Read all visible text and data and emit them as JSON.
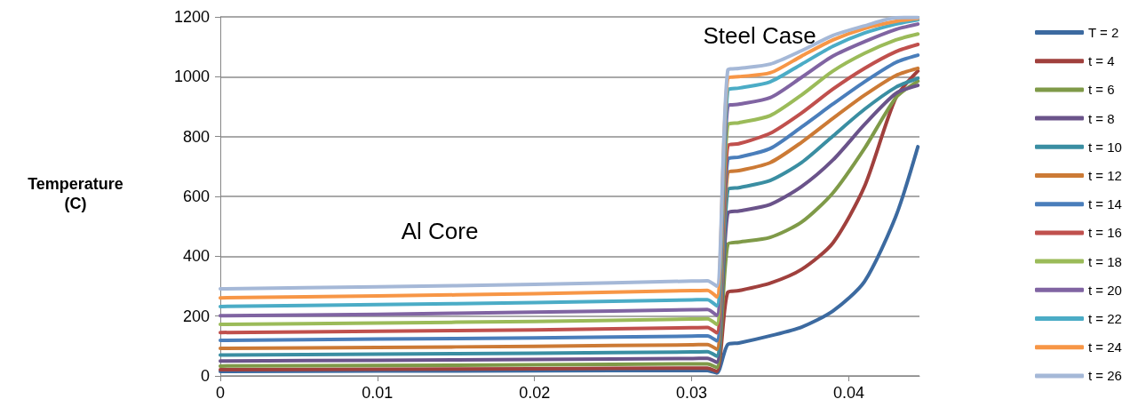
{
  "chart_data": {
    "type": "line",
    "ylabel": "Temperature (C)",
    "x": [
      0,
      0.01,
      0.02,
      0.03,
      0.031,
      0.0316,
      0.0323,
      0.033,
      0.035,
      0.037,
      0.039,
      0.041,
      0.043,
      0.0444
    ],
    "xlim": [
      0,
      0.0445
    ],
    "xticks": [
      0,
      0.01,
      0.02,
      0.03,
      0.04
    ],
    "ylim": [
      0,
      1200
    ],
    "yticks": [
      0,
      200,
      400,
      600,
      800,
      {
        "value": 1000,
        "label": "1000"
      },
      {
        "value": 1200,
        "label": "1200"
      }
    ],
    "grid": "y",
    "legend": "right",
    "marker": "none",
    "line_style": "solid",
    "annotations": [
      "Steel Case",
      "Al Core"
    ],
    "series": [
      {
        "name": "T = 2",
        "color": "#3c6aa0",
        "values": [
          15,
          16,
          17,
          18,
          18,
          10,
          105,
          110,
          134,
          163,
          217,
          315,
          534,
          766
        ]
      },
      {
        "name": "t = 4",
        "color": "#a0403d",
        "values": [
          21,
          22,
          24,
          26,
          26,
          15,
          280,
          285,
          310,
          356,
          445,
          633,
          930,
          1019
        ]
      },
      {
        "name": "t = 6",
        "color": "#7f9a48",
        "values": [
          33,
          35,
          37,
          40,
          40,
          28,
          440,
          447,
          463,
          514,
          612,
          760,
          930,
          985
        ]
      },
      {
        "name": "t = 8",
        "color": "#6a538a",
        "values": [
          50,
          52,
          55,
          58,
          59,
          45,
          545,
          551,
          573,
          633,
          722,
          840,
          944,
          971
        ]
      },
      {
        "name": "t = 10",
        "color": "#3a8ea2",
        "values": [
          70,
          73,
          76,
          80,
          81,
          66,
          622,
          629,
          653,
          713,
          802,
          891,
          965,
          995
        ]
      },
      {
        "name": "t = 12",
        "color": "#cc7a35",
        "values": [
          92,
          95,
          99,
          104,
          105,
          89,
          680,
          686,
          713,
          781,
          861,
          938,
          1004,
          1028
        ]
      },
      {
        "name": "t = 14",
        "color": "#4a7ebb",
        "values": [
          119,
          123,
          127,
          133,
          134,
          117,
          725,
          731,
          760,
          832,
          909,
          983,
          1048,
          1072
        ]
      },
      {
        "name": "t = 16",
        "color": "#c0504d",
        "values": [
          145,
          149,
          154,
          161,
          162,
          144,
          770,
          776,
          811,
          879,
          959,
          1028,
          1084,
          1108
        ]
      },
      {
        "name": "t = 18",
        "color": "#9bbb59",
        "values": [
          172,
          177,
          182,
          190,
          191,
          172,
          840,
          846,
          870,
          939,
          1019,
          1078,
          1123,
          1143
        ]
      },
      {
        "name": "t = 20",
        "color": "#8064a2",
        "values": [
          201,
          206,
          213,
          221,
          222,
          202,
          902,
          908,
          930,
          998,
          1069,
          1117,
          1158,
          1176
        ]
      },
      {
        "name": "t = 22",
        "color": "#4bacc6",
        "values": [
          232,
          238,
          245,
          254,
          255,
          234,
          955,
          962,
          983,
          1042,
          1102,
          1146,
          1176,
          1190
        ]
      },
      {
        "name": "t = 24",
        "color": "#f79646",
        "values": [
          261,
          267,
          275,
          285,
          286,
          264,
          995,
          1000,
          1013,
          1069,
          1123,
          1161,
          1185,
          1195
        ]
      },
      {
        "name": "t = 26",
        "color": "#a5b8d7",
        "values": [
          291,
          298,
          306,
          317,
          318,
          300,
          1022,
          1028,
          1042,
          1087,
          1138,
          1170,
          1197,
          1198
        ]
      }
    ]
  }
}
